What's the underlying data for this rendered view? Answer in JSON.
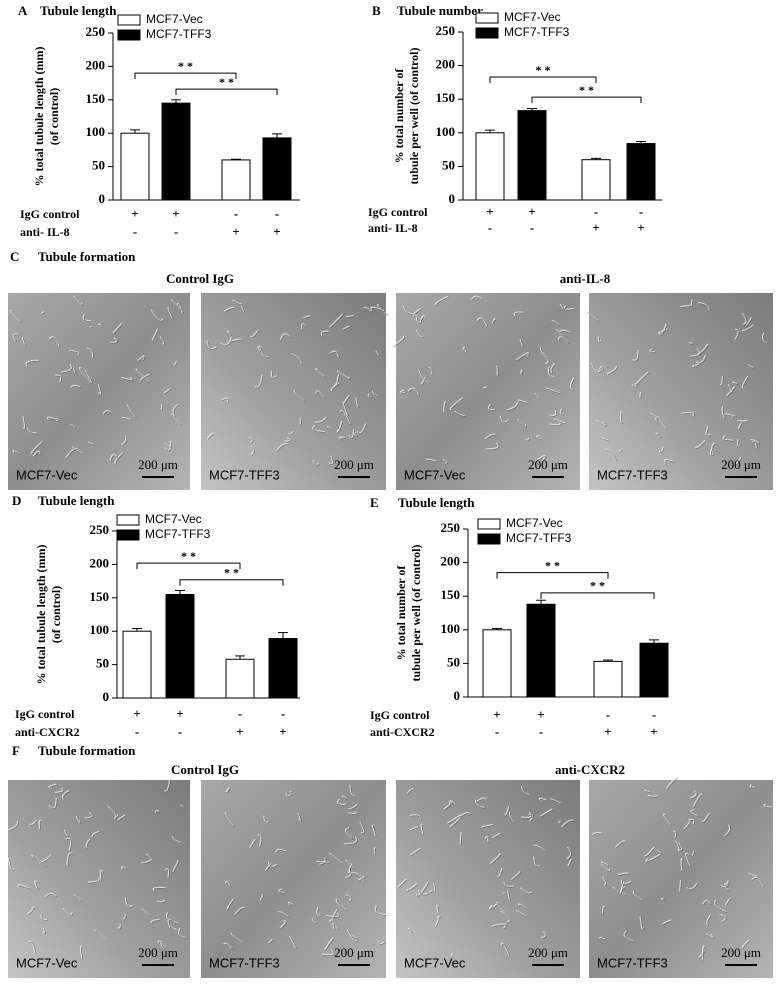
{
  "chart_data": [
    {
      "type": "bar",
      "panel": "A",
      "title": "Tubule length",
      "y_label": [
        "% total tubule length (mm)",
        "(of control)"
      ],
      "ylim": [
        0,
        250
      ],
      "yticks": [
        0,
        50,
        100,
        150,
        200,
        250
      ],
      "categories": [
        null,
        null
      ],
      "series": [
        {
          "name": "MCF7-Vec",
          "color": "#ffffff",
          "values": [
            100,
            60
          ],
          "errors": [
            5,
            1
          ]
        },
        {
          "name": "MCF7-TFF3",
          "color": "#000000",
          "values": [
            145,
            93
          ],
          "errors": [
            5,
            6
          ]
        }
      ],
      "treatments": [
        {
          "label": "IgG control",
          "signs": [
            "+",
            "+",
            "-",
            "-"
          ]
        },
        {
          "label": "anti- IL-8",
          "signs": [
            "-",
            "-",
            "+",
            "+"
          ]
        }
      ],
      "significance": [
        {
          "label": "* *",
          "y": 190
        },
        {
          "label": "* *",
          "y": 166
        }
      ]
    },
    {
      "type": "bar",
      "panel": "B",
      "title": "Tubule number",
      "y_label": [
        "% total number of",
        "tubule per well (of control)"
      ],
      "ylim": [
        0,
        250
      ],
      "yticks": [
        0,
        50,
        100,
        150,
        200,
        250
      ],
      "categories": [
        null,
        null
      ],
      "series": [
        {
          "name": "MCF7-Vec",
          "color": "#ffffff",
          "values": [
            100,
            60
          ],
          "errors": [
            4,
            2
          ]
        },
        {
          "name": "MCF7-TFF3",
          "color": "#000000",
          "values": [
            133,
            84
          ],
          "errors": [
            3,
            3
          ]
        }
      ],
      "treatments": [
        {
          "label": "IgG control",
          "signs": [
            "+",
            "+",
            "-",
            "-"
          ]
        },
        {
          "label": "anti- IL-8",
          "signs": [
            "-",
            "-",
            "+",
            "+"
          ]
        }
      ],
      "significance": [
        {
          "label": "* *",
          "y": 183
        },
        {
          "label": "* *",
          "y": 153
        }
      ]
    },
    {
      "type": "bar",
      "panel": "D",
      "title": "Tubule length",
      "y_label": [
        "% total tubule length (mm)",
        "(of control)"
      ],
      "ylim": [
        0,
        250
      ],
      "yticks": [
        0,
        50,
        100,
        150,
        200,
        250
      ],
      "categories": [
        null,
        null
      ],
      "series": [
        {
          "name": "MCF7-Vec",
          "color": "#ffffff",
          "values": [
            100,
            58
          ],
          "errors": [
            4,
            5
          ]
        },
        {
          "name": "MCF7-TFF3",
          "color": "#000000",
          "values": [
            155,
            89
          ],
          "errors": [
            6,
            9
          ]
        }
      ],
      "treatments": [
        {
          "label": "IgG control",
          "signs": [
            "+",
            "+",
            "-",
            "-"
          ]
        },
        {
          "label": "anti-CXCR2",
          "signs": [
            "-",
            "-",
            "+",
            "+"
          ]
        }
      ],
      "significance": [
        {
          "label": "* *",
          "y": 202
        },
        {
          "label": "* *",
          "y": 177
        }
      ]
    },
    {
      "type": "bar",
      "panel": "E",
      "title": "Tubule length",
      "y_label": [
        "% total number of",
        "tubule per well (of control)"
      ],
      "ylim": [
        0,
        250
      ],
      "yticks": [
        0,
        50,
        100,
        150,
        200,
        250
      ],
      "categories": [
        null,
        null
      ],
      "series": [
        {
          "name": "MCF7-Vec",
          "color": "#ffffff",
          "values": [
            100,
            53
          ],
          "errors": [
            2,
            2
          ]
        },
        {
          "name": "MCF7-TFF3",
          "color": "#000000",
          "values": [
            138,
            80
          ],
          "errors": [
            6,
            5
          ]
        }
      ],
      "treatments": [
        {
          "label": "IgG control",
          "signs": [
            "+",
            "+",
            "-",
            "-"
          ]
        },
        {
          "label": "anti-CXCR2",
          "signs": [
            "-",
            "-",
            "+",
            "+"
          ]
        }
      ],
      "significance": [
        {
          "label": "* *",
          "y": 185
        },
        {
          "label": "* *",
          "y": 155
        }
      ]
    }
  ],
  "panels": [
    {
      "letter": "C",
      "title": "Tubule formation",
      "groups": [
        "Control IgG",
        "anti-IL-8"
      ],
      "images": [
        {
          "label": "MCF7-Vec",
          "scale": "200 μm"
        },
        {
          "label": "MCF7-TFF3",
          "scale": "200 μm"
        },
        {
          "label": "MCF7-Vec",
          "scale": "200 μm"
        },
        {
          "label": "MCF7-TFF3",
          "scale": "200 μm"
        }
      ]
    },
    {
      "letter": "F",
      "title": "Tubule formation",
      "groups": [
        "Control IgG",
        "anti-CXCR2"
      ],
      "images": [
        {
          "label": "MCF7-Vec",
          "scale": "200 μm"
        },
        {
          "label": "MCF7-TFF3",
          "scale": "200 μm"
        },
        {
          "label": "MCF7-Vec",
          "scale": "200 μm"
        },
        {
          "label": "MCF7-TFF3",
          "scale": "200 μm"
        }
      ]
    }
  ]
}
